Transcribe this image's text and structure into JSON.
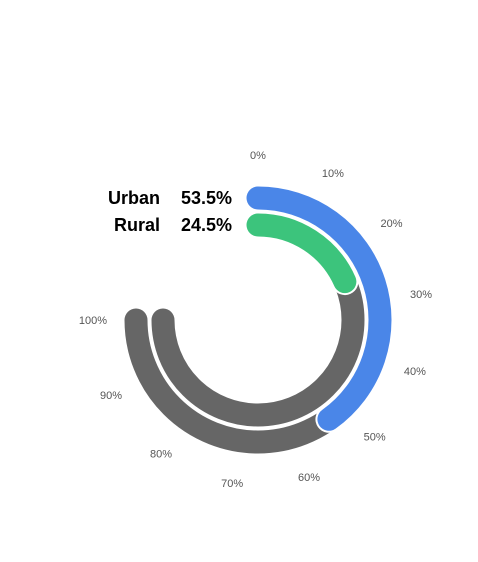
{
  "chart_data": {
    "type": "radial-bar",
    "scale": {
      "min": 0,
      "max": 100,
      "unit": "%"
    },
    "tick_labels": [
      "0%",
      "10%",
      "20%",
      "30%",
      "40%",
      "50%",
      "60%",
      "70%",
      "80%",
      "90%",
      "100%"
    ],
    "series": [
      {
        "name": "Urban",
        "value": 53.5,
        "value_label": "53.5%",
        "color": "#4a86e8"
      },
      {
        "name": "Rural",
        "value": 24.5,
        "value_label": "24.5%",
        "color": "#3cc47c"
      }
    ],
    "track_color": "#666666",
    "background_color": "#ffffff"
  }
}
